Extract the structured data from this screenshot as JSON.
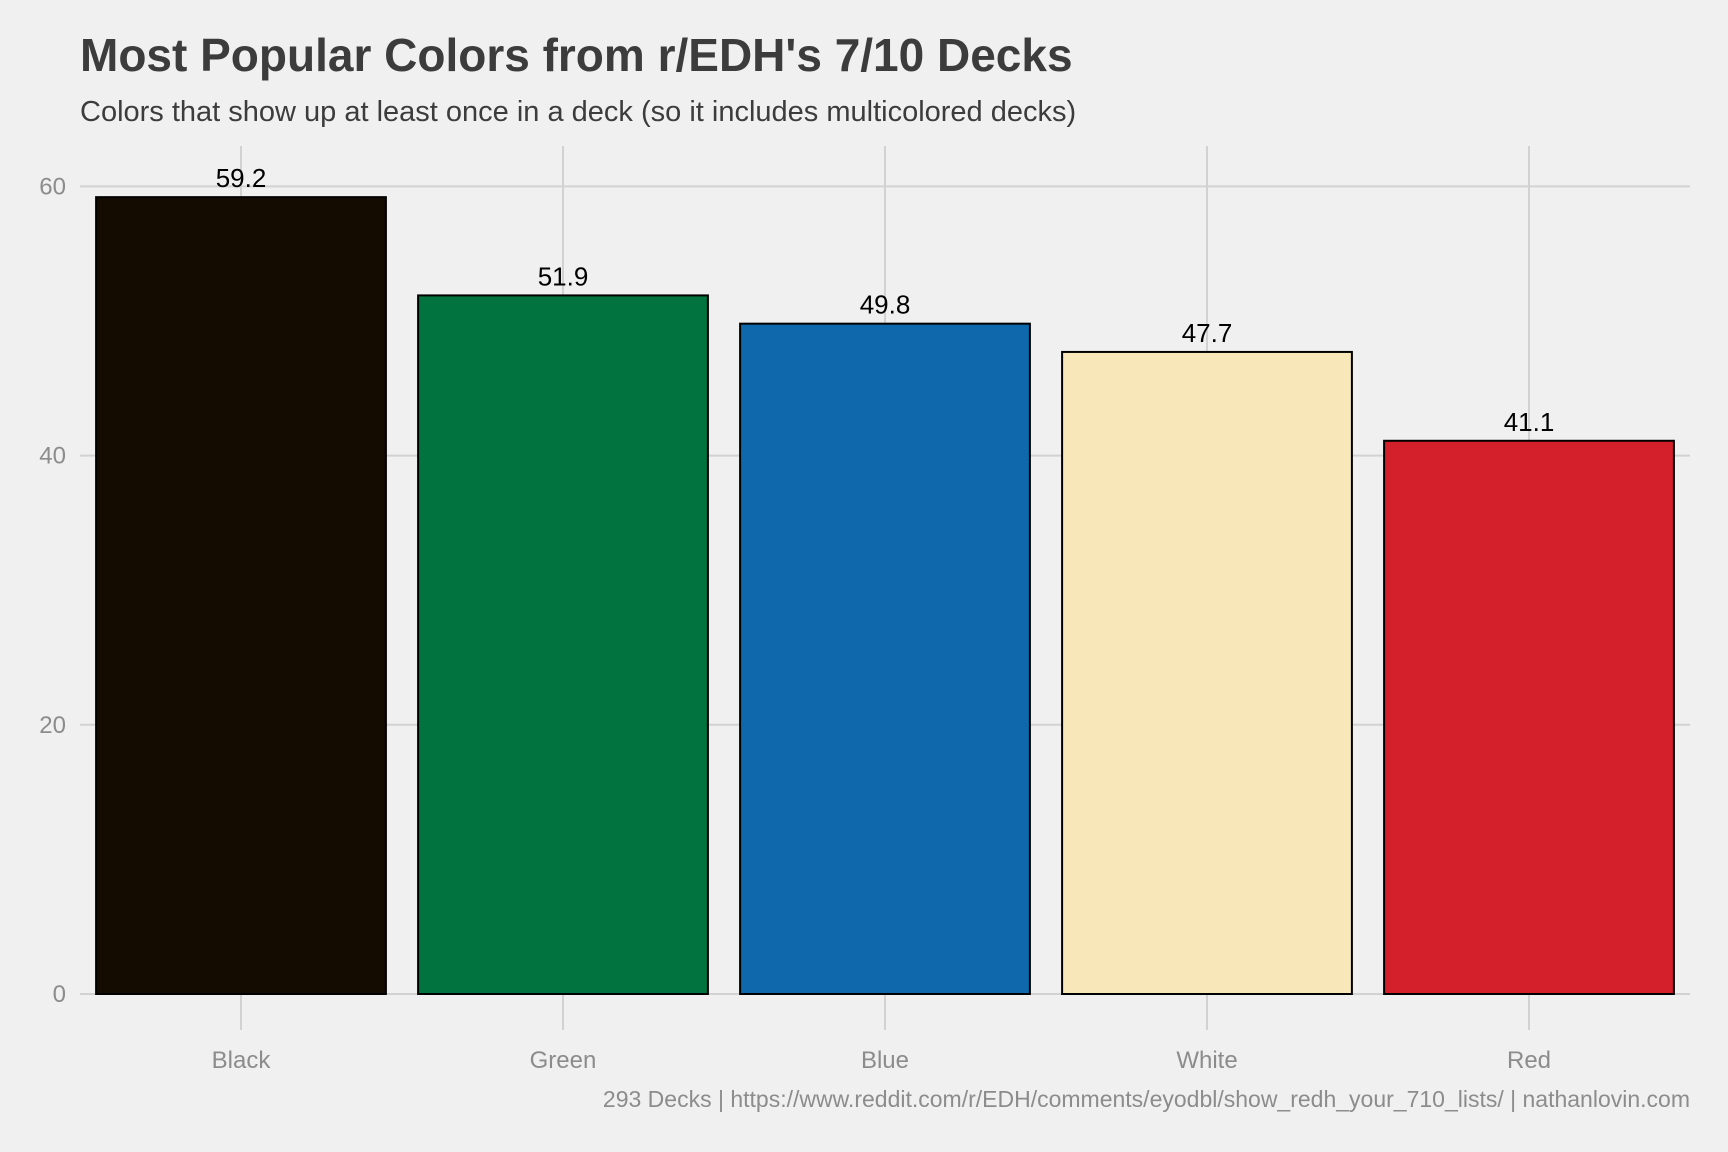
{
  "chart_data": {
    "type": "bar",
    "title": "Most Popular Colors from r/EDH's 7/10 Decks",
    "subtitle": "Colors that show up at least once in a deck (so it includes multicolored decks)",
    "caption": "293 Decks | https://www.reddit.com/r/EDH/comments/eyodbl/show_redh_your_710_lists/ | nathanlovin.com",
    "categories": [
      "Black",
      "Green",
      "Blue",
      "White",
      "Red"
    ],
    "values": [
      59.2,
      51.9,
      49.8,
      47.7,
      41.1
    ],
    "data_labels": [
      "59.2",
      "51.9",
      "49.8",
      "47.7",
      "41.1"
    ],
    "colors": [
      "#150c00",
      "#00733e",
      "#0e68ab",
      "#f8e7b9",
      "#d3202a"
    ],
    "ylim": [
      0,
      63
    ],
    "yticks": [
      0,
      20,
      40,
      60
    ],
    "xlabel": "",
    "ylabel": "",
    "grid": true,
    "background": "#f0f0f0"
  }
}
